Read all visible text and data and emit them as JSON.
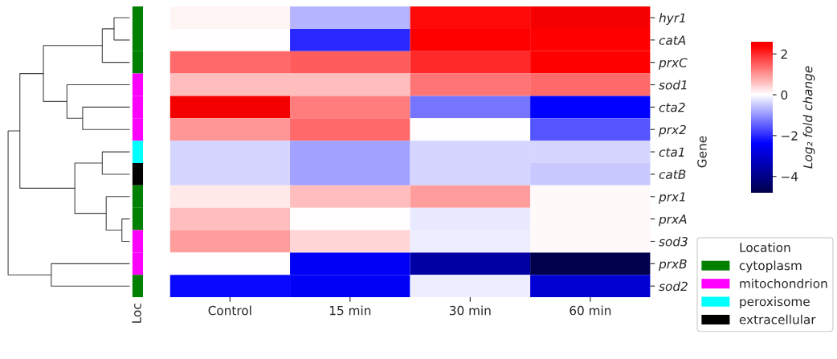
{
  "chart_data": [
    {
      "type": "other",
      "annotations": [
        "Loc"
      ],
      "legend_title": "Location",
      "legend": "bottom right",
      "colors": [
        "#008000",
        "#008000",
        "#008000",
        "#ff00ff",
        "#ff00ff",
        "#ff00ff",
        "#00ffff",
        "#000000",
        "#008000",
        "#008000",
        "#ff00ff",
        "#ff00ff",
        "#008000"
      ],
      "series": [
        {
          "name": "cytoplasm",
          "color": "#008000"
        },
        {
          "name": "mitochondrion",
          "color": "#ff00ff"
        },
        {
          "name": "peroxisome",
          "color": "#00ffff"
        },
        {
          "name": "extracellular",
          "color": "#000000"
        }
      ]
    },
    {
      "type": "heatmap",
      "categories": [
        "Control",
        "15 min",
        "30 min",
        "60 min"
      ],
      "y_categories": [
        "hyr1",
        "catA",
        "prxC",
        "sod1",
        "cta2",
        "prx2",
        "cta1",
        "catB",
        "prx1",
        "prxA",
        "sod3",
        "prxB",
        "sod2"
      ],
      "ylabel": "Gene",
      "clabel": "Log₂ fold change",
      "clim": [
        -4.8,
        2.6
      ],
      "cticks": [
        {
          "value": -4,
          "label": "−4"
        },
        {
          "value": -2,
          "label": "−2"
        },
        0,
        2
      ],
      "cells": [
        [
          0.1,
          -0.7,
          2.3,
          2.6
        ],
        [
          0.0,
          -2.0,
          2.4,
          2.4
        ],
        [
          1.4,
          1.5,
          2.0,
          2.4
        ],
        [
          0.6,
          0.6,
          1.3,
          1.4
        ],
        [
          2.6,
          1.2,
          -1.3,
          -2.4
        ],
        [
          1.0,
          1.4,
          0.0,
          -1.6
        ],
        [
          -0.4,
          -0.9,
          -0.4,
          -0.4
        ],
        [
          -0.4,
          -0.9,
          -0.4,
          -0.5
        ],
        [
          0.2,
          0.6,
          0.9,
          0.05
        ],
        [
          0.6,
          0.0,
          -0.2,
          0.05
        ],
        [
          0.9,
          0.4,
          -0.15,
          0.05
        ],
        [
          0.0,
          -2.5,
          -3.6,
          -4.8
        ],
        [
          -2.3,
          -2.5,
          -0.15,
          -3.0
        ]
      ]
    }
  ]
}
